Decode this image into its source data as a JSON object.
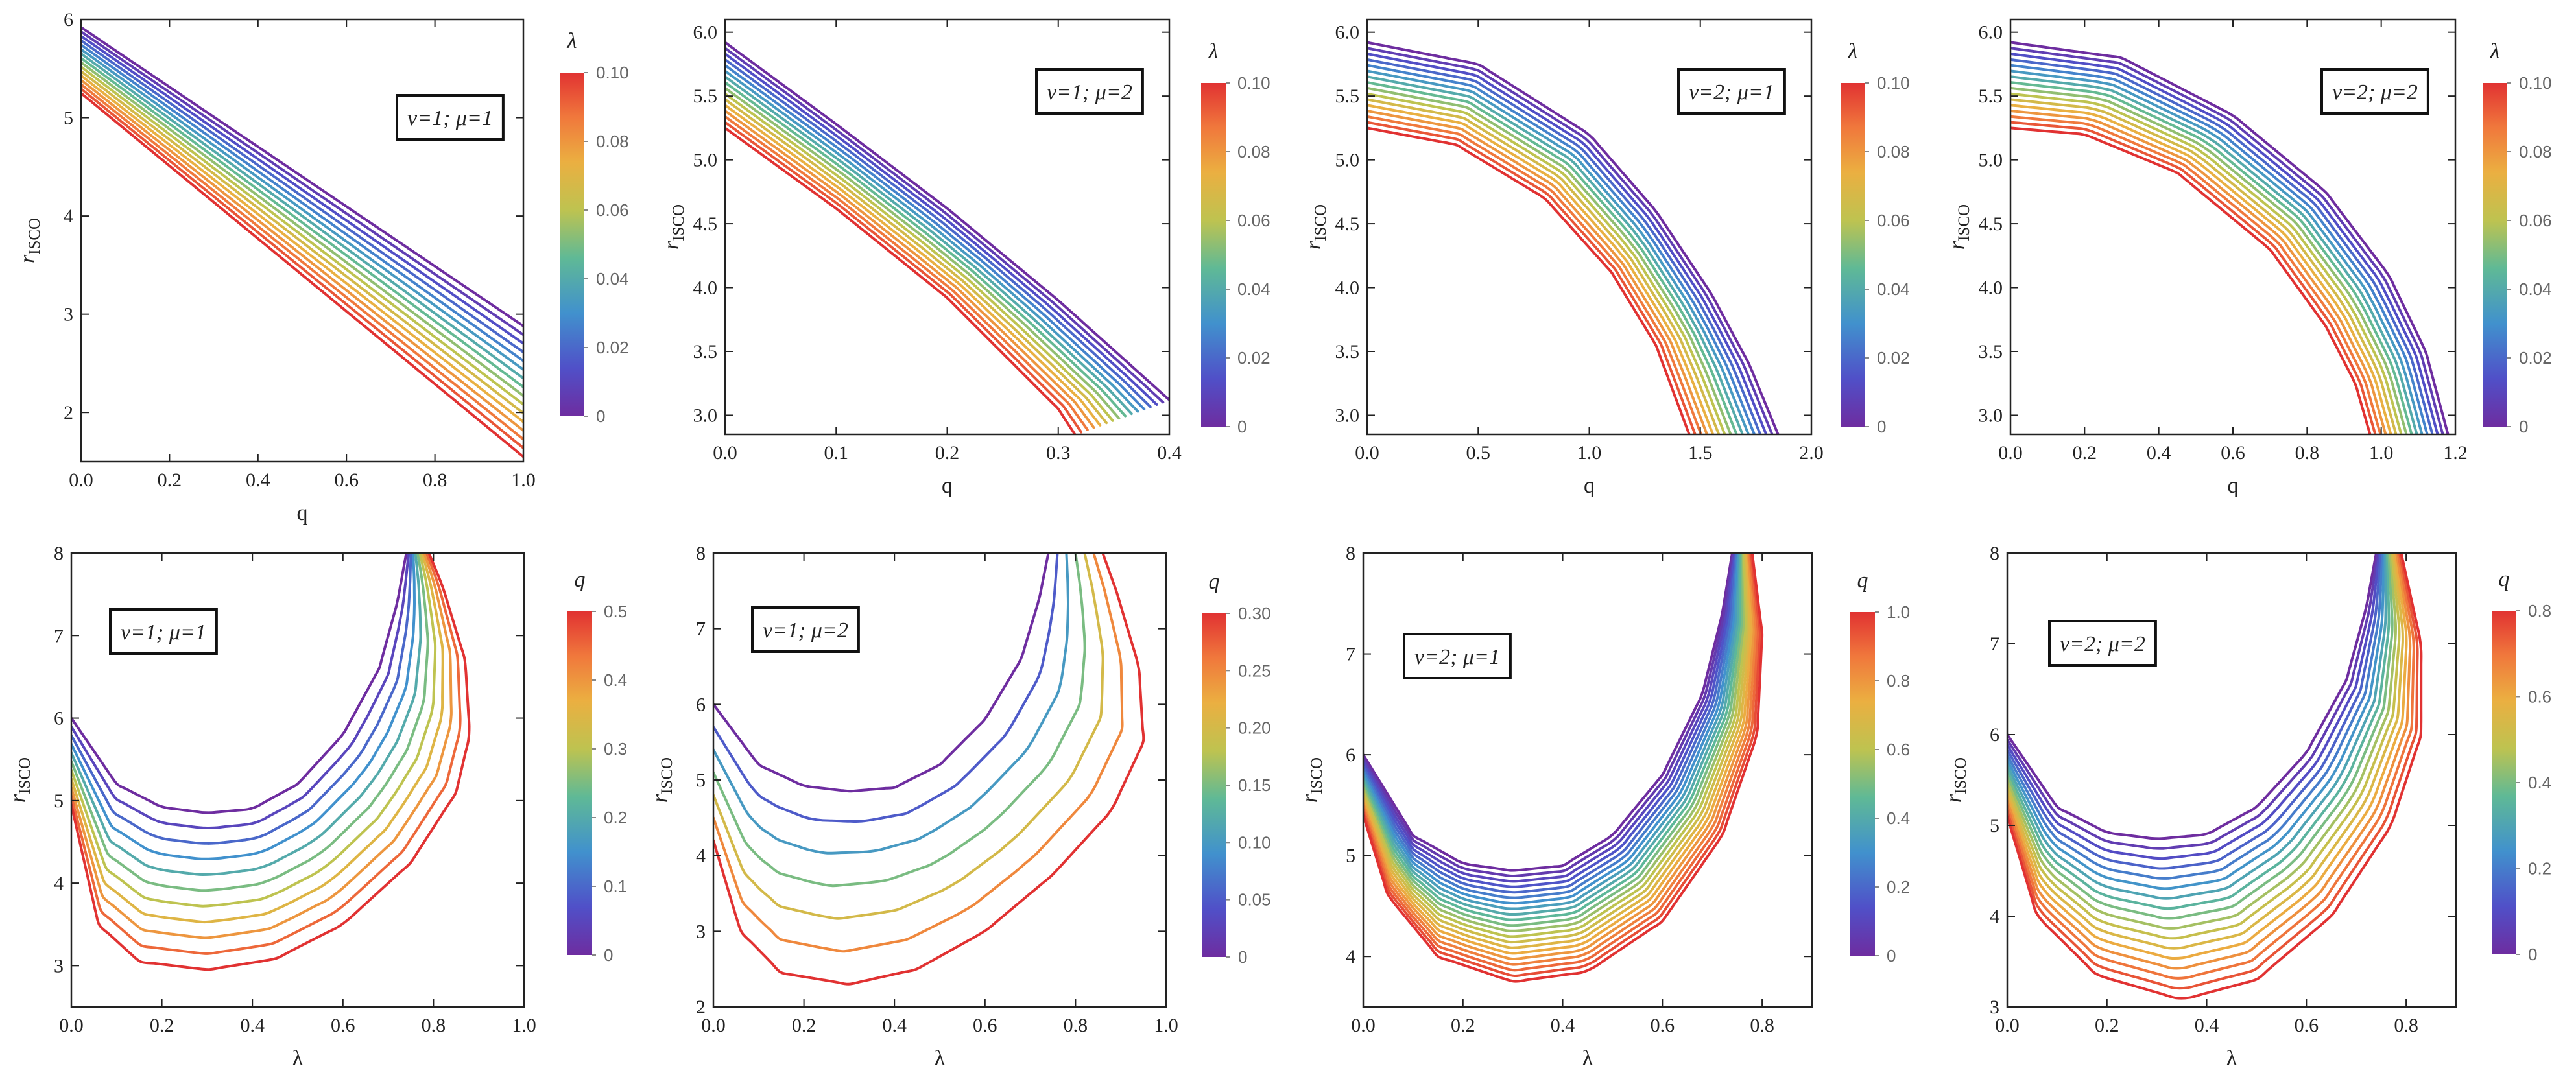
{
  "chart_data": [
    {
      "type": "line",
      "panel": "top-1",
      "legend_label": "ν=1; μ=1",
      "xlabel": "q",
      "ylabel": "r",
      "ylabel_sub": "ISCO",
      "xlim": [
        0,
        1.0
      ],
      "ylim": [
        1.5,
        6.0
      ],
      "xticks": [
        "0.0",
        "0.2",
        "0.4",
        "0.6",
        "0.8",
        "1.0"
      ],
      "yticks": [
        "2",
        "3",
        "4",
        "5",
        "6"
      ],
      "colorbar": {
        "title": "λ",
        "range": [
          0,
          0.1
        ],
        "ticks": [
          "0",
          "0.02",
          "0.04",
          "0.06",
          "0.08",
          "0.10"
        ]
      },
      "family": {
        "parameter": "λ",
        "count": 16,
        "start": {
          "points": [
            [
              0.0,
              5.92
            ],
            [
              1.0,
              2.88
            ]
          ]
        },
        "end": {
          "points": [
            [
              0.0,
              5.25
            ],
            [
              1.0,
              1.55
            ]
          ]
        }
      }
    },
    {
      "type": "line",
      "panel": "top-2",
      "legend_label": "ν=1; μ=2",
      "xlabel": "q",
      "ylabel": "r",
      "ylabel_sub": "ISCO",
      "xlim": [
        0,
        0.4
      ],
      "ylim": [
        2.85,
        6.1
      ],
      "xticks": [
        "0.0",
        "0.1",
        "0.2",
        "0.3",
        "0.4"
      ],
      "yticks": [
        "3.0",
        "3.5",
        "4.0",
        "4.5",
        "5.0",
        "5.5",
        "6.0"
      ],
      "colorbar": {
        "title": "λ",
        "range": [
          0,
          0.1
        ],
        "ticks": [
          "0",
          "0.02",
          "0.04",
          "0.06",
          "0.08",
          "0.10"
        ]
      },
      "family": {
        "parameter": "λ",
        "count": 16,
        "start": {
          "points": [
            [
              0.0,
              5.92
            ],
            [
              0.1,
              5.28
            ],
            [
              0.2,
              4.62
            ],
            [
              0.3,
              3.9
            ],
            [
              0.4,
              3.12
            ]
          ]
        },
        "end": {
          "points": [
            [
              0.0,
              5.25
            ],
            [
              0.1,
              4.62
            ],
            [
              0.2,
              3.92
            ],
            [
              0.3,
              3.05
            ],
            [
              0.315,
              2.85
            ]
          ]
        }
      }
    },
    {
      "type": "line",
      "panel": "top-3",
      "legend_label": "ν=2; μ=1",
      "xlabel": "q",
      "ylabel": "r",
      "ylabel_sub": "ISCO",
      "xlim": [
        0,
        2.0
      ],
      "ylim": [
        2.85,
        6.1
      ],
      "xticks": [
        "0.0",
        "0.5",
        "1.0",
        "1.5",
        "2.0"
      ],
      "yticks": [
        "3.0",
        "3.5",
        "4.0",
        "4.5",
        "5.0",
        "5.5",
        "6.0"
      ],
      "colorbar": {
        "title": "λ",
        "range": [
          0,
          0.1
        ],
        "ticks": [
          "0",
          "0.02",
          "0.04",
          "0.06",
          "0.08",
          "0.10"
        ]
      },
      "family": {
        "parameter": "λ",
        "count": 16,
        "start": {
          "points": [
            [
              0.0,
              5.92
            ],
            [
              0.5,
              5.75
            ],
            [
              1.0,
              5.2
            ],
            [
              1.3,
              4.6
            ],
            [
              1.55,
              3.95
            ],
            [
              1.72,
              3.4
            ],
            [
              1.85,
              2.85
            ]
          ]
        },
        "end": {
          "points": [
            [
              0.0,
              5.25
            ],
            [
              0.4,
              5.12
            ],
            [
              0.8,
              4.7
            ],
            [
              1.1,
              4.12
            ],
            [
              1.3,
              3.55
            ],
            [
              1.45,
              2.85
            ]
          ]
        }
      }
    },
    {
      "type": "line",
      "panel": "top-4",
      "legend_label": "ν=2; μ=2",
      "xlabel": "q",
      "ylabel": "r",
      "ylabel_sub": "ISCO",
      "xlim": [
        0,
        1.2
      ],
      "ylim": [
        2.85,
        6.1
      ],
      "xticks": [
        "0.0",
        "0.2",
        "0.4",
        "0.6",
        "0.8",
        "1.0",
        "1.2"
      ],
      "yticks": [
        "3.0",
        "3.5",
        "4.0",
        "4.5",
        "5.0",
        "5.5",
        "6.0"
      ],
      "colorbar": {
        "title": "λ",
        "range": [
          0,
          0.1
        ],
        "ticks": [
          "0",
          "0.02",
          "0.04",
          "0.06",
          "0.08",
          "0.10"
        ]
      },
      "family": {
        "parameter": "λ",
        "count": 16,
        "start": {
          "points": [
            [
              0.0,
              5.92
            ],
            [
              0.3,
              5.8
            ],
            [
              0.6,
              5.35
            ],
            [
              0.85,
              4.75
            ],
            [
              1.02,
              4.1
            ],
            [
              1.12,
              3.5
            ],
            [
              1.18,
              2.85
            ]
          ]
        },
        "end": {
          "points": [
            [
              0.0,
              5.25
            ],
            [
              0.2,
              5.2
            ],
            [
              0.45,
              4.9
            ],
            [
              0.7,
              4.3
            ],
            [
              0.85,
              3.7
            ],
            [
              0.93,
              3.25
            ],
            [
              0.97,
              2.85
            ]
          ]
        }
      }
    },
    {
      "type": "line",
      "panel": "bottom-1",
      "legend_label": "ν=1; μ=1",
      "xlabel": "λ",
      "ylabel": "r",
      "ylabel_sub": "ISCO",
      "xlim": [
        0,
        1.0
      ],
      "ylim": [
        2.5,
        8.0
      ],
      "xticks": [
        "0.0",
        "0.2",
        "0.4",
        "0.6",
        "0.8",
        "1.0"
      ],
      "yticks": [
        "3",
        "4",
        "5",
        "6",
        "7",
        "8"
      ],
      "colorbar": {
        "title": "q",
        "range": [
          0,
          0.5
        ],
        "ticks": [
          "0",
          "0.1",
          "0.2",
          "0.3",
          "0.4",
          "0.5"
        ]
      },
      "family": {
        "parameter": "q",
        "count": 11,
        "start": {
          "points": [
            [
              0.0,
              6.0
            ],
            [
              0.1,
              5.2
            ],
            [
              0.2,
              4.92
            ],
            [
              0.3,
              4.85
            ],
            [
              0.4,
              4.9
            ],
            [
              0.5,
              5.2
            ],
            [
              0.6,
              5.8
            ],
            [
              0.68,
              6.6
            ],
            [
              0.72,
              7.4
            ],
            [
              0.74,
              8.0
            ]
          ]
        },
        "end": {
          "points": [
            [
              0.0,
              4.95
            ],
            [
              0.06,
              3.5
            ],
            [
              0.15,
              3.05
            ],
            [
              0.3,
              2.95
            ],
            [
              0.45,
              3.08
            ],
            [
              0.6,
              3.5
            ],
            [
              0.75,
              4.25
            ],
            [
              0.85,
              5.1
            ],
            [
              0.88,
              5.8
            ],
            [
              0.87,
              6.7
            ],
            [
              0.82,
              7.6
            ],
            [
              0.79,
              8.0
            ]
          ]
        }
      }
    },
    {
      "type": "line",
      "panel": "bottom-2",
      "legend_label": "ν=1; μ=2",
      "xlabel": "λ",
      "ylabel": "r",
      "ylabel_sub": "ISCO",
      "xlim": [
        0,
        1.0
      ],
      "ylim": [
        2.0,
        8.0
      ],
      "xticks": [
        "0.0",
        "0.2",
        "0.4",
        "0.6",
        "0.8",
        "1.0"
      ],
      "yticks": [
        "2",
        "3",
        "4",
        "5",
        "6",
        "7",
        "8"
      ],
      "colorbar": {
        "title": "q",
        "range": [
          0,
          0.3
        ],
        "ticks": [
          "0",
          "0.05",
          "0.10",
          "0.15",
          "0.20",
          "0.25",
          "0.30"
        ]
      },
      "family": {
        "parameter": "q",
        "count": 7,
        "start": {
          "points": [
            [
              0.0,
              6.0
            ],
            [
              0.1,
              5.2
            ],
            [
              0.2,
              4.92
            ],
            [
              0.3,
              4.85
            ],
            [
              0.4,
              4.9
            ],
            [
              0.5,
              5.2
            ],
            [
              0.6,
              5.8
            ],
            [
              0.68,
              6.6
            ],
            [
              0.72,
              7.4
            ],
            [
              0.74,
              8.0
            ]
          ]
        },
        "end": {
          "points": [
            [
              0.0,
              4.2
            ],
            [
              0.06,
              3.0
            ],
            [
              0.15,
              2.45
            ],
            [
              0.3,
              2.3
            ],
            [
              0.45,
              2.5
            ],
            [
              0.6,
              3.0
            ],
            [
              0.75,
              3.75
            ],
            [
              0.88,
              4.6
            ],
            [
              0.95,
              5.5
            ],
            [
              0.94,
              6.5
            ],
            [
              0.89,
              7.5
            ],
            [
              0.86,
              8.0
            ]
          ]
        }
      }
    },
    {
      "type": "line",
      "panel": "bottom-3",
      "legend_label": "ν=2; μ=1",
      "xlabel": "λ",
      "ylabel": "r",
      "ylabel_sub": "ISCO",
      "xlim": [
        0,
        0.9
      ],
      "ylim": [
        3.5,
        8.0
      ],
      "xticks": [
        "0.0",
        "0.2",
        "0.4",
        "0.6",
        "0.8"
      ],
      "yticks": [
        "4",
        "5",
        "6",
        "7",
        "8"
      ],
      "colorbar": {
        "title": "q",
        "range": [
          0,
          1.0
        ],
        "ticks": [
          "0",
          "0.2",
          "0.4",
          "0.6",
          "0.8",
          "1.0"
        ]
      },
      "family": {
        "parameter": "q",
        "count": 21,
        "start": {
          "points": [
            [
              0.0,
              6.0
            ],
            [
              0.1,
              5.2
            ],
            [
              0.2,
              4.92
            ],
            [
              0.3,
              4.85
            ],
            [
              0.4,
              4.9
            ],
            [
              0.5,
              5.2
            ],
            [
              0.6,
              5.8
            ],
            [
              0.68,
              6.6
            ],
            [
              0.72,
              7.4
            ],
            [
              0.74,
              8.0
            ]
          ]
        },
        "end": {
          "points": [
            [
              0.0,
              5.4
            ],
            [
              0.05,
              4.6
            ],
            [
              0.15,
              4.0
            ],
            [
              0.3,
              3.75
            ],
            [
              0.45,
              3.85
            ],
            [
              0.6,
              4.35
            ],
            [
              0.72,
              5.2
            ],
            [
              0.79,
              6.2
            ],
            [
              0.8,
              7.2
            ],
            [
              0.78,
              8.0
            ]
          ]
        }
      }
    },
    {
      "type": "line",
      "panel": "bottom-4",
      "legend_label": "ν=2; μ=2",
      "xlabel": "λ",
      "ylabel": "r",
      "ylabel_sub": "ISCO",
      "xlim": [
        0,
        0.9
      ],
      "ylim": [
        3.0,
        8.0
      ],
      "xticks": [
        "0.0",
        "0.2",
        "0.4",
        "0.6",
        "0.8"
      ],
      "yticks": [
        "3",
        "4",
        "5",
        "6",
        "7",
        "8"
      ],
      "colorbar": {
        "title": "q",
        "range": [
          0,
          0.8
        ],
        "ticks": [
          "0",
          "0.2",
          "0.4",
          "0.6",
          "0.8"
        ]
      },
      "family": {
        "parameter": "q",
        "count": 17,
        "start": {
          "points": [
            [
              0.0,
              6.0
            ],
            [
              0.1,
              5.2
            ],
            [
              0.2,
              4.92
            ],
            [
              0.3,
              4.85
            ],
            [
              0.4,
              4.9
            ],
            [
              0.5,
              5.2
            ],
            [
              0.6,
              5.8
            ],
            [
              0.68,
              6.6
            ],
            [
              0.72,
              7.4
            ],
            [
              0.74,
              8.0
            ]
          ]
        },
        "end": {
          "points": [
            [
              0.0,
              5.1
            ],
            [
              0.06,
              4.0
            ],
            [
              0.18,
              3.35
            ],
            [
              0.35,
              3.08
            ],
            [
              0.5,
              3.3
            ],
            [
              0.65,
              4.0
            ],
            [
              0.77,
              5.0
            ],
            [
              0.83,
              6.0
            ],
            [
              0.83,
              7.0
            ],
            [
              0.79,
              8.0
            ]
          ]
        }
      }
    }
  ]
}
